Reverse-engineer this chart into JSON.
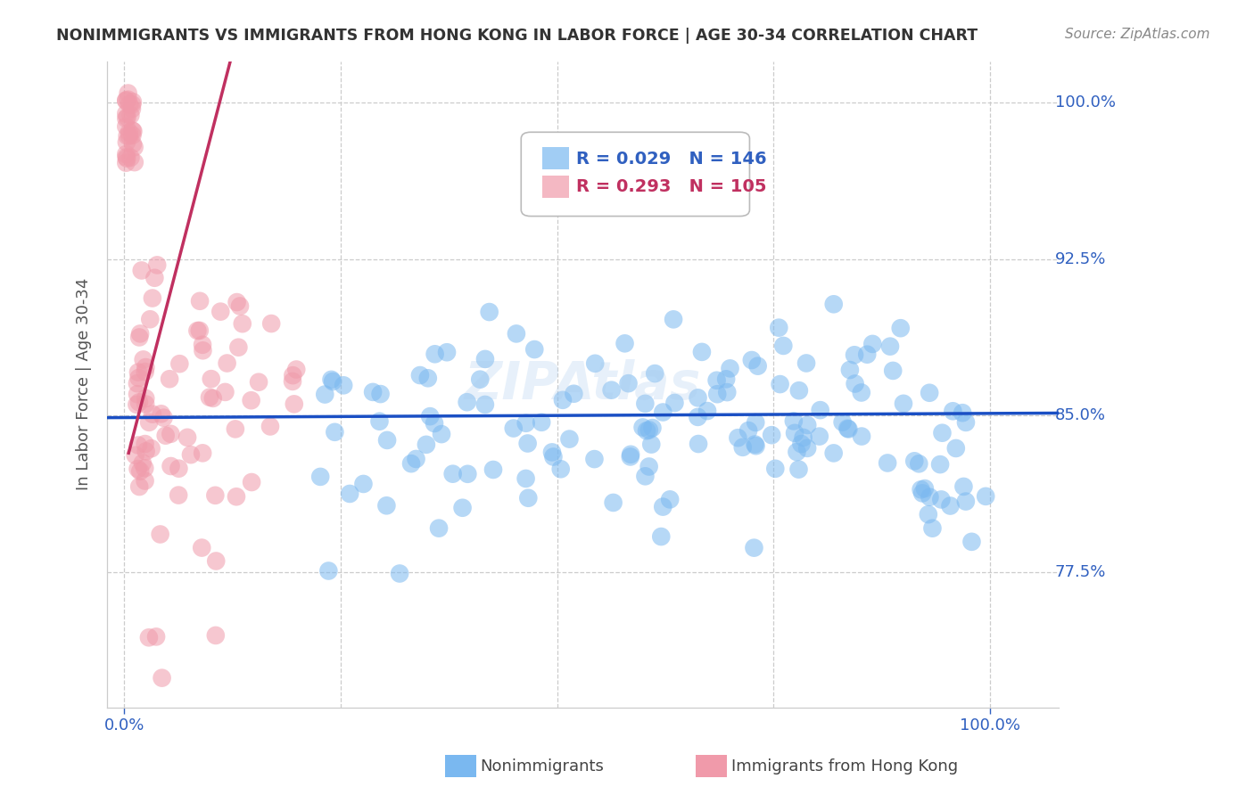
{
  "title": "NONIMMIGRANTS VS IMMIGRANTS FROM HONG KONG IN LABOR FORCE | AGE 30-34 CORRELATION CHART",
  "source": "Source: ZipAtlas.com",
  "ylabel": "In Labor Force | Age 30-34",
  "blue_R": "0.029",
  "blue_N": "146",
  "pink_R": "0.293",
  "pink_N": "105",
  "blue_color": "#7ab8f0",
  "pink_color": "#f09aaa",
  "trend_blue_color": "#1a4fc4",
  "trend_pink_color": "#c03060",
  "watermark": "ZIPAtlas",
  "legend_blue_label": "Nonimmigrants",
  "legend_pink_label": "Immigrants from Hong Kong",
  "grid_color": "#cccccc",
  "label_color": "#3060c0",
  "axis_label_color": "#555555",
  "title_color": "#333333",
  "source_color": "#888888",
  "ylim_low": 0.71,
  "ylim_high": 1.02,
  "xlim_low": -0.02,
  "xlim_high": 1.08,
  "y_tick_vals": [
    0.775,
    0.85,
    0.925,
    1.0
  ],
  "y_tick_labels": [
    "77.5%",
    "85.0%",
    "92.5%",
    "100.0%"
  ],
  "x_tick_vals": [
    0.0,
    1.0
  ],
  "x_tick_labels": [
    "0.0%",
    "100.0%"
  ]
}
